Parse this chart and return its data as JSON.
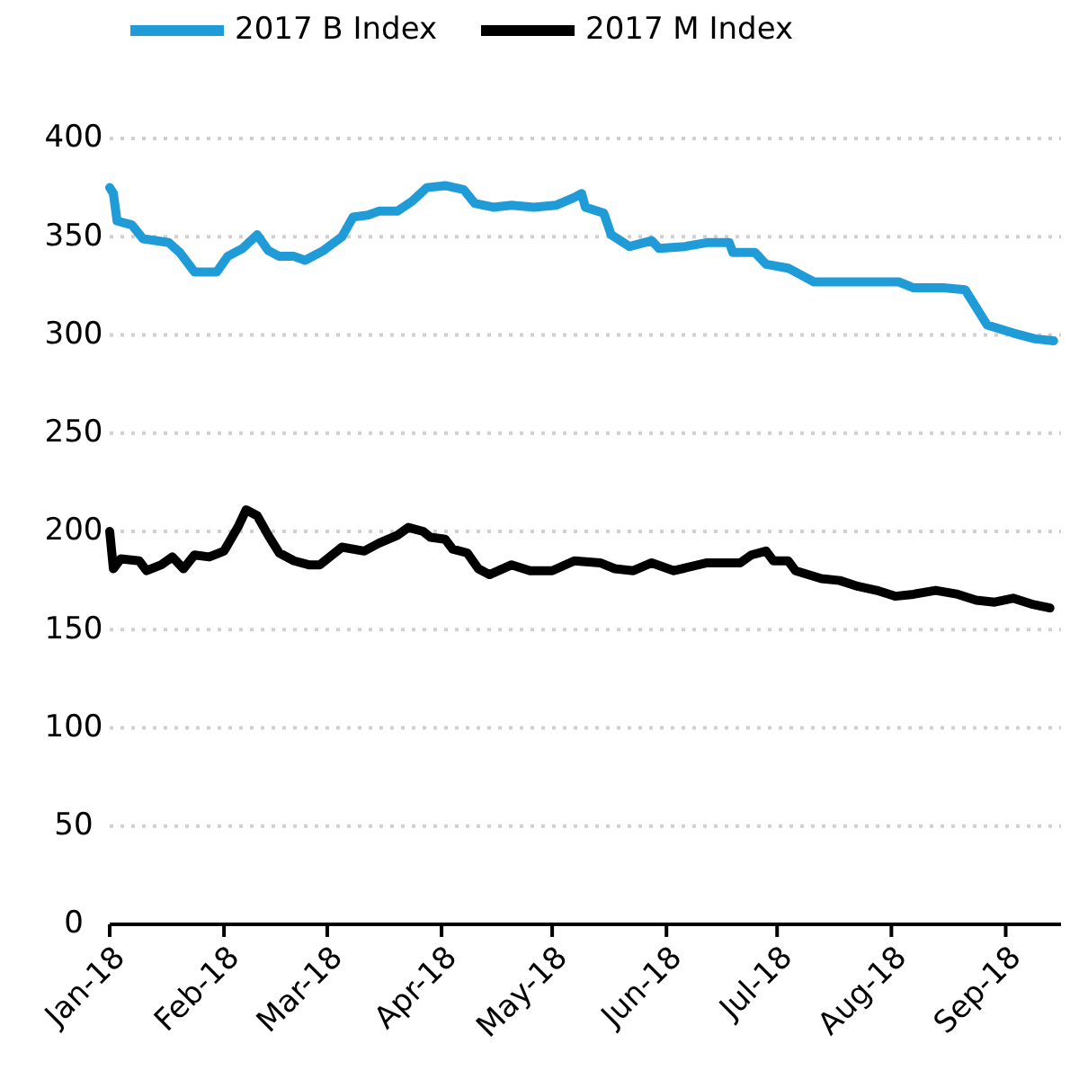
{
  "chart_data": {
    "type": "line",
    "legend": "top",
    "grid": "y",
    "line_style": "solid",
    "marker": "none",
    "xlim": [
      "2018-01-01",
      "2018-09-16"
    ],
    "xticks": [
      {
        "value": "2018-01-01",
        "label": "Jan-18"
      },
      {
        "value": "2018-02-01",
        "label": "Feb-18"
      },
      {
        "value": "2018-03-01",
        "label": "Mar-18"
      },
      {
        "value": "2018-04-01",
        "label": "Apr-18"
      },
      {
        "value": "2018-05-01",
        "label": "May-18"
      },
      {
        "value": "2018-06-01",
        "label": "Jun-18"
      },
      {
        "value": "2018-07-01",
        "label": "Jul-18"
      },
      {
        "value": "2018-08-01",
        "label": "Aug-18"
      },
      {
        "value": "2018-09-01",
        "label": "Sep-18"
      }
    ],
    "ylim": [
      0,
      400
    ],
    "yticks": [
      0,
      50,
      100,
      150,
      200,
      250,
      300,
      350,
      400
    ],
    "series": [
      {
        "name": "2017 B Index",
        "color": "#1f9bd7",
        "x": [
          "2018-01-01",
          "2018-01-02",
          "2018-01-03",
          "2018-01-07",
          "2018-01-10",
          "2018-01-17",
          "2018-01-20",
          "2018-01-24",
          "2018-01-30",
          "2018-02-02",
          "2018-02-06",
          "2018-02-10",
          "2018-02-13",
          "2018-02-16",
          "2018-02-20",
          "2018-02-23",
          "2018-02-28",
          "2018-03-05",
          "2018-03-08",
          "2018-03-12",
          "2018-03-15",
          "2018-03-20",
          "2018-03-24",
          "2018-03-28",
          "2018-04-02",
          "2018-04-07",
          "2018-04-10",
          "2018-04-15",
          "2018-04-20",
          "2018-04-26",
          "2018-05-02",
          "2018-05-07",
          "2018-05-09",
          "2018-05-10",
          "2018-05-15",
          "2018-05-17",
          "2018-05-22",
          "2018-05-28",
          "2018-05-30",
          "2018-06-06",
          "2018-06-12",
          "2018-06-18",
          "2018-06-19",
          "2018-06-25",
          "2018-06-28",
          "2018-07-04",
          "2018-07-09",
          "2018-07-11",
          "2018-07-17",
          "2018-07-24",
          "2018-08-03",
          "2018-08-07",
          "2018-08-15",
          "2018-08-21",
          "2018-08-23",
          "2018-08-27",
          "2018-09-03",
          "2018-09-09",
          "2018-09-14"
        ],
        "values": [
          375,
          372,
          358,
          356,
          349,
          347,
          342,
          332,
          332,
          340,
          344,
          351,
          343,
          340,
          340,
          338,
          343,
          350,
          360,
          361,
          363,
          363,
          368,
          375,
          376,
          374,
          367,
          365,
          366,
          365,
          366,
          370,
          372,
          365,
          362,
          351,
          345,
          348,
          344,
          345,
          347,
          347,
          342,
          342,
          336,
          334,
          329,
          327,
          327,
          327,
          327,
          324,
          324,
          323,
          317,
          305,
          301,
          298,
          297
        ]
      },
      {
        "name": "2017 M Index",
        "color": "#000000",
        "x": [
          "2018-01-01",
          "2018-01-02",
          "2018-01-04",
          "2018-01-09",
          "2018-01-11",
          "2018-01-15",
          "2018-01-18",
          "2018-01-21",
          "2018-01-24",
          "2018-01-28",
          "2018-02-01",
          "2018-02-05",
          "2018-02-07",
          "2018-02-10",
          "2018-02-13",
          "2018-02-16",
          "2018-02-20",
          "2018-02-24",
          "2018-02-27",
          "2018-03-05",
          "2018-03-11",
          "2018-03-15",
          "2018-03-20",
          "2018-03-23",
          "2018-03-27",
          "2018-03-29",
          "2018-04-02",
          "2018-04-04",
          "2018-04-08",
          "2018-04-11",
          "2018-04-14",
          "2018-04-20",
          "2018-04-25",
          "2018-05-01",
          "2018-05-07",
          "2018-05-14",
          "2018-05-18",
          "2018-05-23",
          "2018-05-28",
          "2018-06-03",
          "2018-06-12",
          "2018-06-21",
          "2018-06-24",
          "2018-06-28",
          "2018-06-30",
          "2018-07-04",
          "2018-07-06",
          "2018-07-13",
          "2018-07-18",
          "2018-07-23",
          "2018-07-28",
          "2018-08-02",
          "2018-08-07",
          "2018-08-13",
          "2018-08-19",
          "2018-08-24",
          "2018-08-29",
          "2018-09-03",
          "2018-09-08",
          "2018-09-13"
        ],
        "values": [
          200,
          181,
          186,
          185,
          180,
          183,
          187,
          181,
          188,
          187,
          190,
          203,
          211,
          208,
          198,
          189,
          185,
          183,
          183,
          192,
          190,
          194,
          198,
          202,
          200,
          197,
          196,
          191,
          189,
          181,
          178,
          183,
          180,
          180,
          185,
          184,
          181,
          180,
          184,
          180,
          184,
          184,
          188,
          190,
          185,
          185,
          180,
          176,
          175,
          172,
          170,
          167,
          168,
          170,
          168,
          165,
          164,
          166,
          163,
          161
        ]
      }
    ]
  }
}
